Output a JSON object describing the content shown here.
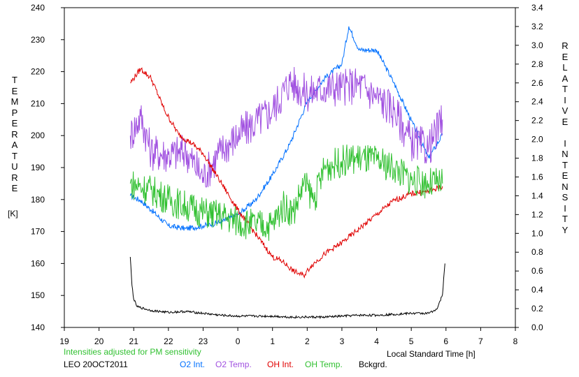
{
  "chart_data": {
    "type": "line",
    "left_axis": {
      "title": "TEMPERATURE",
      "unit": "[K]",
      "ylim": [
        140,
        240
      ],
      "ticks": [
        "140",
        "150",
        "160",
        "170",
        "180",
        "190",
        "200",
        "210",
        "220",
        "230",
        "240"
      ]
    },
    "right_axis": {
      "title": "RELATIVE INTENSITY",
      "ylim": [
        0.0,
        3.4
      ],
      "ticks": [
        "0.0",
        "0.2",
        "0.4",
        "0.6",
        "0.8",
        "1.0",
        "1.2",
        "1.4",
        "1.6",
        "1.8",
        "2.0",
        "2.2",
        "2.4",
        "2.6",
        "2.8",
        "3.0",
        "3.2",
        "3.4"
      ]
    },
    "x_axis": {
      "label": "Local Standard Time [h]",
      "range": [
        19,
        32
      ],
      "tick_labels": [
        "19",
        "20",
        "21",
        "22",
        "23",
        "0",
        "1",
        "2",
        "3",
        "4",
        "5",
        "6",
        "7",
        "8"
      ]
    },
    "grid": false,
    "series": [
      {
        "name": "O2 Int.",
        "axis": "right",
        "color": "#0070ff",
        "x": [
          20.9,
          21.2,
          21.5,
          22.0,
          22.5,
          23.0,
          23.5,
          24.0,
          24.5,
          25.0,
          25.5,
          26.0,
          26.5,
          27.0,
          27.2,
          27.5,
          28.0,
          28.5,
          29.0,
          29.5,
          29.9
        ],
        "y": [
          1.4,
          1.35,
          1.25,
          1.08,
          1.05,
          1.08,
          1.12,
          1.2,
          1.35,
          1.62,
          1.95,
          2.4,
          2.65,
          2.8,
          3.2,
          2.95,
          2.95,
          2.6,
          2.2,
          1.8,
          2.05
        ]
      },
      {
        "name": "O2 Temp.",
        "axis": "left",
        "color": "#a050e0",
        "x": [
          20.9,
          21.2,
          21.5,
          22.0,
          22.5,
          23.0,
          23.5,
          24.0,
          24.5,
          25.0,
          25.5,
          26.0,
          26.5,
          27.0,
          27.5,
          28.0,
          28.5,
          29.0,
          29.5,
          29.9
        ],
        "y": [
          200,
          206,
          195,
          194,
          195,
          187,
          195,
          200,
          204,
          208,
          217,
          213,
          215,
          215,
          216,
          212,
          208,
          198,
          196,
          205
        ]
      },
      {
        "name": "OH Int.",
        "axis": "right",
        "color": "#e00000",
        "x": [
          20.9,
          21.2,
          21.5,
          21.9,
          22.3,
          22.7,
          23.0,
          23.5,
          24.0,
          24.5,
          25.0,
          25.3,
          25.6,
          25.9,
          26.1,
          26.5,
          27.0,
          27.5,
          28.0,
          28.5,
          29.0,
          29.5,
          29.9
        ],
        "y": [
          2.6,
          2.75,
          2.65,
          2.3,
          2.05,
          1.95,
          1.85,
          1.55,
          1.25,
          1.0,
          0.75,
          0.7,
          0.6,
          0.55,
          0.65,
          0.78,
          0.9,
          1.05,
          1.2,
          1.35,
          1.42,
          1.45,
          1.5
        ]
      },
      {
        "name": "OH Temp.",
        "axis": "left",
        "color": "#30c030",
        "x": [
          20.9,
          21.2,
          21.5,
          22.0,
          22.5,
          23.0,
          23.5,
          24.0,
          24.5,
          25.0,
          25.3,
          25.6,
          25.9,
          26.2,
          26.5,
          27.0,
          27.5,
          28.0,
          28.5,
          29.0,
          29.5,
          29.9
        ],
        "y": [
          185,
          184,
          183,
          180,
          178,
          176,
          175,
          173,
          172,
          172,
          178,
          176,
          185,
          180,
          190,
          192,
          193,
          192,
          190,
          186,
          185,
          185
        ]
      },
      {
        "name": "Bckgrd.",
        "axis": "right",
        "color": "#000000",
        "x": [
          20.9,
          20.95,
          21.0,
          21.1,
          21.5,
          22.0,
          22.5,
          23.0,
          23.5,
          24.0,
          24.5,
          25.0,
          25.5,
          26.0,
          26.5,
          27.0,
          27.5,
          28.0,
          28.5,
          29.0,
          29.5,
          29.75,
          29.9,
          29.97
        ],
        "y": [
          0.75,
          0.45,
          0.3,
          0.22,
          0.18,
          0.16,
          0.17,
          0.15,
          0.13,
          0.12,
          0.12,
          0.12,
          0.11,
          0.11,
          0.11,
          0.12,
          0.13,
          0.13,
          0.14,
          0.15,
          0.15,
          0.2,
          0.35,
          0.68
        ]
      }
    ]
  },
  "footer": {
    "note": "Intensities adjusted for PM sensitivity",
    "note_color": "#30c030",
    "station_date": "LEO 20OCT2011",
    "legend": [
      {
        "label": "O2 Int.",
        "color": "#0070ff"
      },
      {
        "label": "O2 Temp.",
        "color": "#a050e0"
      },
      {
        "label": "OH Int.",
        "color": "#e00000"
      },
      {
        "label": "OH Temp.",
        "color": "#30c030"
      },
      {
        "label": "Bckgrd.",
        "color": "#000000"
      }
    ]
  }
}
